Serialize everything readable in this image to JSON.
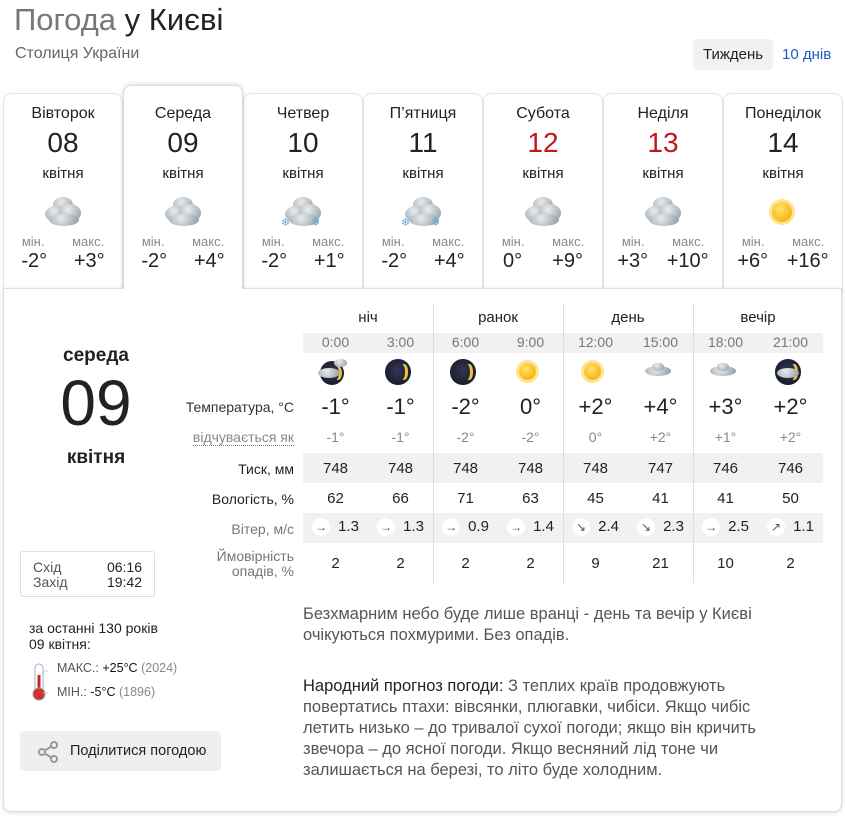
{
  "header": {
    "title_prefix": "Погода",
    "title_city": "у Києві",
    "subtitle": "Столиця України"
  },
  "tabs": {
    "week": "Тиждень",
    "ten_days": "10 днів"
  },
  "colors": {
    "weekend": "#c3161c",
    "link": "#1a5ec4"
  },
  "days": [
    {
      "name": "Вівторок",
      "date": "08",
      "month": "квітня",
      "icon": "cloudy-icon",
      "min_label": "мін.",
      "max_label": "макс.",
      "min": "-2°",
      "max": "+3°",
      "weekend": false,
      "selected": false
    },
    {
      "name": "Середа",
      "date": "09",
      "month": "квітня",
      "icon": "cloudy-icon",
      "min_label": "мін.",
      "max_label": "макс.",
      "min": "-2°",
      "max": "+4°",
      "weekend": false,
      "selected": true
    },
    {
      "name": "Четвер",
      "date": "10",
      "month": "квітня",
      "icon": "cloudy-light-snow-icon",
      "min_label": "мін.",
      "max_label": "макс.",
      "min": "-2°",
      "max": "+1°",
      "weekend": false,
      "selected": false
    },
    {
      "name": "П’ятниця",
      "date": "11",
      "month": "квітня",
      "icon": "cloudy-snow-icon",
      "min_label": "мін.",
      "max_label": "макс.",
      "min": "-2°",
      "max": "+4°",
      "weekend": false,
      "selected": false
    },
    {
      "name": "Субота",
      "date": "12",
      "month": "квітня",
      "icon": "cloudy-icon",
      "min_label": "мін.",
      "max_label": "макс.",
      "min": "0°",
      "max": "+9°",
      "weekend": true,
      "selected": false
    },
    {
      "name": "Неділя",
      "date": "13",
      "month": "квітня",
      "icon": "cloudy-icon",
      "min_label": "мін.",
      "max_label": "макс.",
      "min": "+3°",
      "max": "+10°",
      "weekend": true,
      "selected": false
    },
    {
      "name": "Понеділок",
      "date": "14",
      "month": "квітня",
      "icon": "sunny-icon",
      "min_label": "мін.",
      "max_label": "макс.",
      "min": "+6°",
      "max": "+16°",
      "weekend": false,
      "selected": false
    }
  ],
  "selected_day": {
    "weekday": "середа",
    "date": "09",
    "month": "квітня"
  },
  "sun": {
    "sunrise_label": "Схід",
    "sunrise": "06:16",
    "sunset_label": "Захід",
    "sunset": "19:42"
  },
  "history": {
    "line1": "за останні 130 років",
    "line2": "09 квітня:",
    "max_label": "МАКС.:",
    "max_value": "+25°C",
    "max_year": "(2024)",
    "min_label": "МІН.:",
    "min_value": "-5°C",
    "min_year": "(1896)"
  },
  "share_label": "Поділитися погодою",
  "table": {
    "groups": [
      "ніч",
      "ранок",
      "день",
      "вечір"
    ],
    "row_labels": {
      "temperature": "Температура, °C",
      "feels": "відчувається як",
      "pressure": "Тиск, мм",
      "humidity": "Вологість, %",
      "wind": "Вітер, м/с",
      "precip_1": "Ймовірність",
      "precip_2": "опадів, %"
    },
    "times": [
      "0:00",
      "3:00",
      "6:00",
      "9:00",
      "12:00",
      "15:00",
      "18:00",
      "21:00"
    ],
    "icons": [
      "night-partly-cloudy-icon",
      "night-clear-moon-icon",
      "night-clear-moon-icon",
      "sun-icon",
      "sun-icon",
      "cloud-icon",
      "cloud-icon",
      "night-cloudy-icon"
    ],
    "temperature": [
      "-1°",
      "-1°",
      "-2°",
      "0°",
      "+2°",
      "+4°",
      "+3°",
      "+2°"
    ],
    "feels": [
      "-1°",
      "-1°",
      "-2°",
      "-2°",
      "0°",
      "+2°",
      "+1°",
      "+2°"
    ],
    "pressure": [
      "748",
      "748",
      "748",
      "748",
      "748",
      "747",
      "746",
      "746"
    ],
    "humidity": [
      "62",
      "66",
      "71",
      "63",
      "45",
      "41",
      "41",
      "50"
    ],
    "wind_dir": [
      "→",
      "→",
      "→",
      "→",
      "↘",
      "↘",
      "→",
      "↗"
    ],
    "wind": [
      "1.3",
      "1.3",
      "0.9",
      "1.4",
      "2.4",
      "2.3",
      "2.5",
      "1.1"
    ],
    "precip": [
      "2",
      "2",
      "2",
      "2",
      "9",
      "21",
      "10",
      "2"
    ]
  },
  "description": "Безхмарним небо буде лише вранці - день та вечір у Києві очікуються похмурими. Без опадів.",
  "folk": {
    "label": "Народний прогноз погоди:",
    "text": " З теплих країв продовжують повертатись птахи: вівсянки, плюгавки, чибіси. Якщо чибіс летить низько – до тривалої сухої погоди; якщо він кричить звечора – до ясної погоди. Якщо весняний лід тоне чи залишається на березі, то літо буде холодним."
  }
}
